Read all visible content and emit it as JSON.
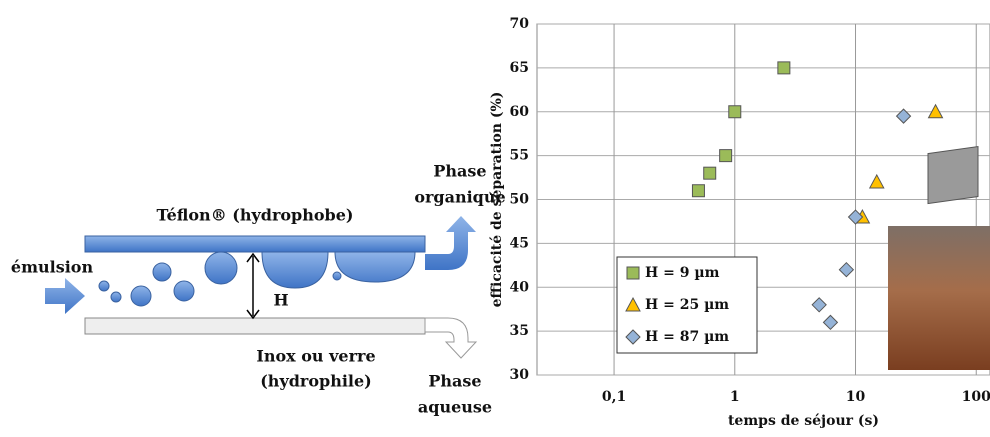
{
  "diagram": {
    "top_wall": "Téflon® (hydrophobe)",
    "inlet": "émulsion",
    "gap": "H",
    "bottom_wall": [
      "Inox ou verre",
      "(hydrophile)"
    ],
    "outlet_top": [
      "Phase",
      "organique"
    ],
    "outlet_bottom": [
      "Phase",
      "aqueuse"
    ]
  },
  "chart_data": {
    "type": "scatter",
    "x_label": "temps de séjour (s)",
    "y_label": "efficacité de séparation (%)",
    "log_x": true,
    "grid": true,
    "legend": "lower left",
    "xlim": [
      0.023,
      130
    ],
    "xticks": [
      {
        "value": 0.1,
        "label": "0,1"
      },
      1,
      10,
      100
    ],
    "ylim": [
      30,
      70
    ],
    "yticks": [
      30,
      35,
      40,
      45,
      50,
      55,
      60,
      65,
      70
    ],
    "series": [
      {
        "name": "H = 9 µm",
        "color": "#9bbb59",
        "marker": "square",
        "x": [
          0.5,
          0.62,
          0.84,
          1.0,
          2.55
        ],
        "values": [
          51,
          53,
          55,
          60,
          65
        ]
      },
      {
        "name": "H = 25 µm",
        "color": "#ffc000",
        "marker": "triangle",
        "x": [
          11.4,
          15,
          46
        ],
        "values": [
          48,
          52,
          60
        ]
      },
      {
        "name": "H = 87 µm",
        "color": "#95b3d7",
        "marker": "diamond",
        "x": [
          5.0,
          6.2,
          8.4,
          10.0,
          25
        ],
        "values": [
          38,
          36,
          42,
          48,
          59.5
        ]
      }
    ]
  }
}
